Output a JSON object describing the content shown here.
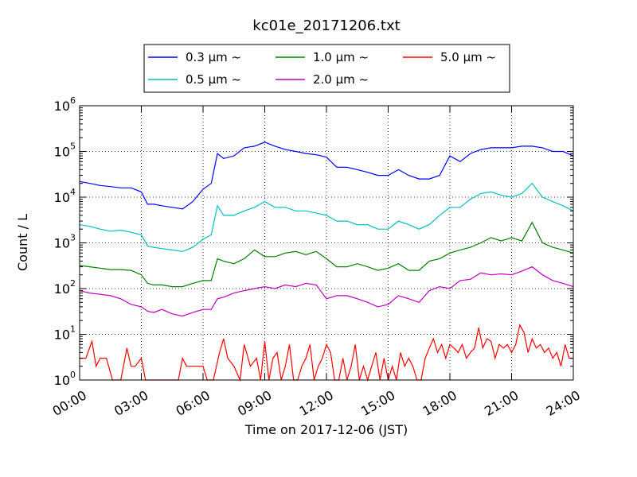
{
  "chart_data": {
    "type": "line",
    "title": "kc01e_20171206.txt",
    "xlabel": "Time on 2017-12-06 (JST)",
    "ylabel": "Count / L",
    "xscale": "time",
    "yscale": "log",
    "xlim": [
      "2017-12-06 00:00",
      "2017-12-07 00:00"
    ],
    "ylim": [
      1,
      1000000
    ],
    "grid": true,
    "legend_position": "top-center",
    "xtick_labels": [
      "00:00",
      "03:00",
      "06:00",
      "09:00",
      "12:00",
      "15:00",
      "18:00",
      "21:00",
      "24:00"
    ],
    "ytick_labels": [
      {
        "base": "10",
        "exp": "0"
      },
      {
        "base": "10",
        "exp": "1"
      },
      {
        "base": "10",
        "exp": "2"
      },
      {
        "base": "10",
        "exp": "3"
      },
      {
        "base": "10",
        "exp": "4"
      },
      {
        "base": "10",
        "exp": "5"
      },
      {
        "base": "10",
        "exp": "6"
      }
    ],
    "series": [
      {
        "name": "0.3 μm ~",
        "color": "#0000ff",
        "points": [
          [
            0,
            22000
          ],
          [
            0.5,
            20000
          ],
          [
            1,
            18000
          ],
          [
            1.5,
            17000
          ],
          [
            2,
            16000
          ],
          [
            2.5,
            16000
          ],
          [
            3,
            13000
          ],
          [
            3.3,
            7000
          ],
          [
            3.6,
            7000
          ],
          [
            4,
            6500
          ],
          [
            4.5,
            6000
          ],
          [
            5,
            5500
          ],
          [
            5.5,
            8000
          ],
          [
            6,
            15000
          ],
          [
            6.4,
            20000
          ],
          [
            6.7,
            90000
          ],
          [
            7,
            70000
          ],
          [
            7.5,
            80000
          ],
          [
            8,
            120000
          ],
          [
            8.5,
            130000
          ],
          [
            9,
            160000
          ],
          [
            9.5,
            130000
          ],
          [
            10,
            110000
          ],
          [
            10.5,
            100000
          ],
          [
            11,
            90000
          ],
          [
            11.5,
            85000
          ],
          [
            12,
            75000
          ],
          [
            12.5,
            45000
          ],
          [
            13,
            45000
          ],
          [
            13.5,
            40000
          ],
          [
            14,
            35000
          ],
          [
            14.5,
            30000
          ],
          [
            15,
            30000
          ],
          [
            15.5,
            40000
          ],
          [
            16,
            30000
          ],
          [
            16.5,
            25000
          ],
          [
            17,
            25000
          ],
          [
            17.5,
            30000
          ],
          [
            18,
            80000
          ],
          [
            18.5,
            60000
          ],
          [
            19,
            90000
          ],
          [
            19.5,
            110000
          ],
          [
            20,
            120000
          ],
          [
            20.5,
            120000
          ],
          [
            21,
            120000
          ],
          [
            21.5,
            130000
          ],
          [
            22,
            130000
          ],
          [
            22.5,
            120000
          ],
          [
            23,
            100000
          ],
          [
            23.5,
            100000
          ],
          [
            24,
            80000
          ]
        ]
      },
      {
        "name": "0.5 μm ~",
        "color": "#00bfbf",
        "points": [
          [
            0,
            2500
          ],
          [
            0.5,
            2300
          ],
          [
            1,
            2000
          ],
          [
            1.5,
            1800
          ],
          [
            2,
            1900
          ],
          [
            2.5,
            1700
          ],
          [
            3,
            1500
          ],
          [
            3.3,
            850
          ],
          [
            3.6,
            800
          ],
          [
            4,
            750
          ],
          [
            4.5,
            700
          ],
          [
            5,
            650
          ],
          [
            5.5,
            800
          ],
          [
            6,
            1200
          ],
          [
            6.4,
            1500
          ],
          [
            6.7,
            6500
          ],
          [
            7,
            4000
          ],
          [
            7.5,
            4000
          ],
          [
            8,
            5000
          ],
          [
            8.5,
            6000
          ],
          [
            9,
            8000
          ],
          [
            9.5,
            6000
          ],
          [
            10,
            6000
          ],
          [
            10.5,
            5000
          ],
          [
            11,
            5000
          ],
          [
            11.5,
            4500
          ],
          [
            12,
            4000
          ],
          [
            12.5,
            3000
          ],
          [
            13,
            3000
          ],
          [
            13.5,
            2500
          ],
          [
            14,
            2500
          ],
          [
            14.5,
            2000
          ],
          [
            15,
            2000
          ],
          [
            15.5,
            3000
          ],
          [
            16,
            2500
          ],
          [
            16.5,
            2000
          ],
          [
            17,
            2500
          ],
          [
            17.5,
            4000
          ],
          [
            18,
            6000
          ],
          [
            18.5,
            6000
          ],
          [
            19,
            9000
          ],
          [
            19.5,
            12000
          ],
          [
            20,
            13000
          ],
          [
            20.5,
            11000
          ],
          [
            21,
            10000
          ],
          [
            21.5,
            12000
          ],
          [
            22,
            20000
          ],
          [
            22.5,
            10000
          ],
          [
            23,
            8000
          ],
          [
            23.5,
            6500
          ],
          [
            24,
            5000
          ]
        ]
      },
      {
        "name": "1.0 μm ~",
        "color": "#008000",
        "points": [
          [
            0,
            320
          ],
          [
            0.5,
            300
          ],
          [
            1,
            280
          ],
          [
            1.5,
            260
          ],
          [
            2,
            260
          ],
          [
            2.5,
            250
          ],
          [
            3,
            200
          ],
          [
            3.3,
            130
          ],
          [
            3.6,
            120
          ],
          [
            4,
            120
          ],
          [
            4.5,
            110
          ],
          [
            5,
            110
          ],
          [
            5.5,
            130
          ],
          [
            6,
            150
          ],
          [
            6.4,
            150
          ],
          [
            6.7,
            450
          ],
          [
            7,
            400
          ],
          [
            7.5,
            350
          ],
          [
            8,
            450
          ],
          [
            8.5,
            700
          ],
          [
            9,
            500
          ],
          [
            9.5,
            500
          ],
          [
            10,
            600
          ],
          [
            10.5,
            650
          ],
          [
            11,
            550
          ],
          [
            11.5,
            650
          ],
          [
            12,
            450
          ],
          [
            12.5,
            300
          ],
          [
            13,
            300
          ],
          [
            13.5,
            350
          ],
          [
            14,
            300
          ],
          [
            14.5,
            250
          ],
          [
            15,
            280
          ],
          [
            15.5,
            350
          ],
          [
            16,
            250
          ],
          [
            16.5,
            250
          ],
          [
            17,
            400
          ],
          [
            17.5,
            450
          ],
          [
            18,
            600
          ],
          [
            18.5,
            700
          ],
          [
            19,
            800
          ],
          [
            19.5,
            1000
          ],
          [
            20,
            1300
          ],
          [
            20.5,
            1100
          ],
          [
            21,
            1300
          ],
          [
            21.5,
            1100
          ],
          [
            22,
            2800
          ],
          [
            22.5,
            1000
          ],
          [
            23,
            800
          ],
          [
            23.5,
            700
          ],
          [
            24,
            600
          ]
        ]
      },
      {
        "name": "2.0 μm ~",
        "color": "#bf00bf",
        "points": [
          [
            0,
            90
          ],
          [
            0.5,
            80
          ],
          [
            1,
            75
          ],
          [
            1.5,
            70
          ],
          [
            2,
            60
          ],
          [
            2.5,
            45
          ],
          [
            3,
            40
          ],
          [
            3.3,
            32
          ],
          [
            3.6,
            30
          ],
          [
            4,
            35
          ],
          [
            4.5,
            28
          ],
          [
            5,
            25
          ],
          [
            5.5,
            30
          ],
          [
            6,
            35
          ],
          [
            6.4,
            35
          ],
          [
            6.7,
            60
          ],
          [
            7,
            65
          ],
          [
            7.5,
            80
          ],
          [
            8,
            90
          ],
          [
            8.5,
            100
          ],
          [
            9,
            110
          ],
          [
            9.5,
            100
          ],
          [
            10,
            120
          ],
          [
            10.5,
            110
          ],
          [
            11,
            130
          ],
          [
            11.5,
            120
          ],
          [
            12,
            60
          ],
          [
            12.5,
            70
          ],
          [
            13,
            70
          ],
          [
            13.5,
            60
          ],
          [
            14,
            50
          ],
          [
            14.5,
            40
          ],
          [
            15,
            45
          ],
          [
            15.5,
            70
          ],
          [
            16,
            60
          ],
          [
            16.5,
            50
          ],
          [
            17,
            90
          ],
          [
            17.5,
            110
          ],
          [
            18,
            100
          ],
          [
            18.5,
            150
          ],
          [
            19,
            160
          ],
          [
            19.5,
            220
          ],
          [
            20,
            200
          ],
          [
            20.5,
            210
          ],
          [
            21,
            200
          ],
          [
            21.5,
            240
          ],
          [
            22,
            300
          ],
          [
            22.5,
            200
          ],
          [
            23,
            150
          ],
          [
            23.5,
            130
          ],
          [
            24,
            110
          ]
        ]
      },
      {
        "name": "5.0 μm ~",
        "color": "#ff0000",
        "points": [
          [
            0,
            3
          ],
          [
            0.3,
            3
          ],
          [
            0.6,
            7
          ],
          [
            0.8,
            2
          ],
          [
            1,
            3
          ],
          [
            1.3,
            3
          ],
          [
            1.6,
            1
          ],
          [
            2,
            1
          ],
          [
            2.3,
            5
          ],
          [
            2.5,
            2
          ],
          [
            2.7,
            2
          ],
          [
            3,
            3
          ],
          [
            3.2,
            1
          ],
          [
            3.5,
            1
          ],
          [
            3.8,
            1
          ],
          [
            4,
            1
          ],
          [
            4.2,
            1
          ],
          [
            4.5,
            1
          ],
          [
            4.8,
            1
          ],
          [
            5,
            3
          ],
          [
            5.2,
            2
          ],
          [
            5.5,
            2
          ],
          [
            6,
            2
          ],
          [
            6.2,
            1
          ],
          [
            6.5,
            1
          ],
          [
            6.8,
            4
          ],
          [
            7,
            8
          ],
          [
            7.2,
            3
          ],
          [
            7.5,
            2
          ],
          [
            7.8,
            1
          ],
          [
            8,
            6
          ],
          [
            8.3,
            2
          ],
          [
            8.6,
            3
          ],
          [
            8.8,
            1
          ],
          [
            9,
            7
          ],
          [
            9.2,
            1
          ],
          [
            9.4,
            3
          ],
          [
            9.6,
            4
          ],
          [
            9.8,
            1
          ],
          [
            10,
            2
          ],
          [
            10.2,
            6
          ],
          [
            10.4,
            1
          ],
          [
            10.6,
            1
          ],
          [
            10.8,
            2
          ],
          [
            11,
            3
          ],
          [
            11.2,
            6
          ],
          [
            11.4,
            1
          ],
          [
            11.6,
            2
          ],
          [
            11.8,
            3
          ],
          [
            12,
            6
          ],
          [
            12.2,
            4
          ],
          [
            12.4,
            1
          ],
          [
            12.6,
            1
          ],
          [
            12.8,
            3
          ],
          [
            13,
            1
          ],
          [
            13.2,
            2
          ],
          [
            13.4,
            6
          ],
          [
            13.6,
            1
          ],
          [
            13.8,
            2
          ],
          [
            14,
            1
          ],
          [
            14.2,
            2
          ],
          [
            14.4,
            4
          ],
          [
            14.6,
            1
          ],
          [
            14.8,
            3
          ],
          [
            15,
            1
          ],
          [
            15.2,
            2
          ],
          [
            15.4,
            1
          ],
          [
            15.6,
            4
          ],
          [
            15.8,
            2
          ],
          [
            16,
            3
          ],
          [
            16.2,
            2
          ],
          [
            16.4,
            1
          ],
          [
            16.6,
            1
          ],
          [
            16.8,
            3
          ],
          [
            17,
            5
          ],
          [
            17.2,
            8
          ],
          [
            17.4,
            4
          ],
          [
            17.6,
            6
          ],
          [
            17.8,
            3
          ],
          [
            18,
            6
          ],
          [
            18.2,
            5
          ],
          [
            18.4,
            4
          ],
          [
            18.6,
            6
          ],
          [
            18.8,
            3
          ],
          [
            19,
            4
          ],
          [
            19.2,
            5
          ],
          [
            19.4,
            14
          ],
          [
            19.6,
            5
          ],
          [
            19.8,
            8
          ],
          [
            20,
            7
          ],
          [
            20.2,
            3
          ],
          [
            20.4,
            6
          ],
          [
            20.6,
            5
          ],
          [
            20.8,
            6
          ],
          [
            21,
            4
          ],
          [
            21.2,
            6
          ],
          [
            21.4,
            16
          ],
          [
            21.6,
            11
          ],
          [
            21.8,
            4
          ],
          [
            22,
            8
          ],
          [
            22.2,
            5
          ],
          [
            22.4,
            6
          ],
          [
            22.6,
            4
          ],
          [
            22.8,
            5
          ],
          [
            23,
            3
          ],
          [
            23.2,
            4
          ],
          [
            23.4,
            2
          ],
          [
            23.6,
            6
          ],
          [
            23.8,
            3
          ],
          [
            24,
            3
          ]
        ]
      }
    ]
  }
}
